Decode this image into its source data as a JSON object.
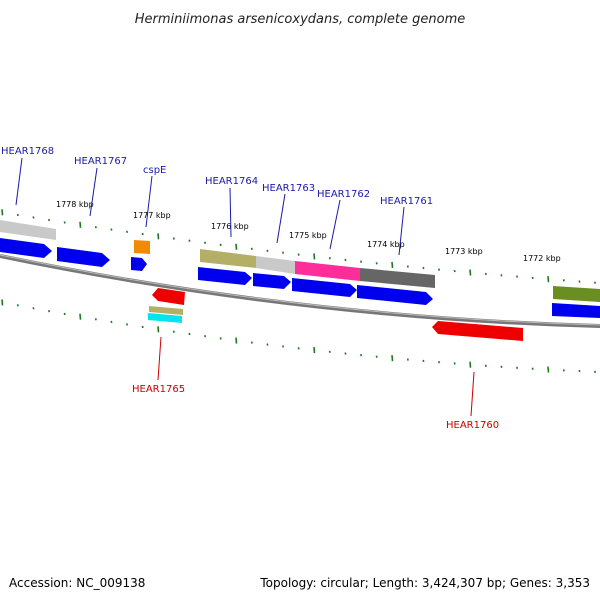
{
  "title": "Herminiimonas arsenicoxydans, complete genome",
  "footer": {
    "accession": "Accession: NC_009138",
    "summary": "Topology: circular; Length: 3,424,307 bp; Genes: 3,353"
  },
  "colors": {
    "forward_label": "#1a1aaa",
    "reverse_label": "#cc0000",
    "cds": "#0000ee",
    "cds_red": "#ee0000",
    "ticks": "#1e7a1e",
    "backbone": "#7a7a7a"
  },
  "tick_labels": [
    "1778 kbp",
    "1777 kbp",
    "1776 kbp",
    "1775 kbp",
    "1774 kbp",
    "1773 kbp",
    "1772 kbp"
  ],
  "forward_labels": [
    "HEAR1768",
    "HEAR1767",
    "cspE",
    "HEAR1764",
    "HEAR1763",
    "HEAR1762",
    "HEAR1761"
  ],
  "reverse_labels": [
    "HEAR1765",
    "HEAR1760"
  ]
}
